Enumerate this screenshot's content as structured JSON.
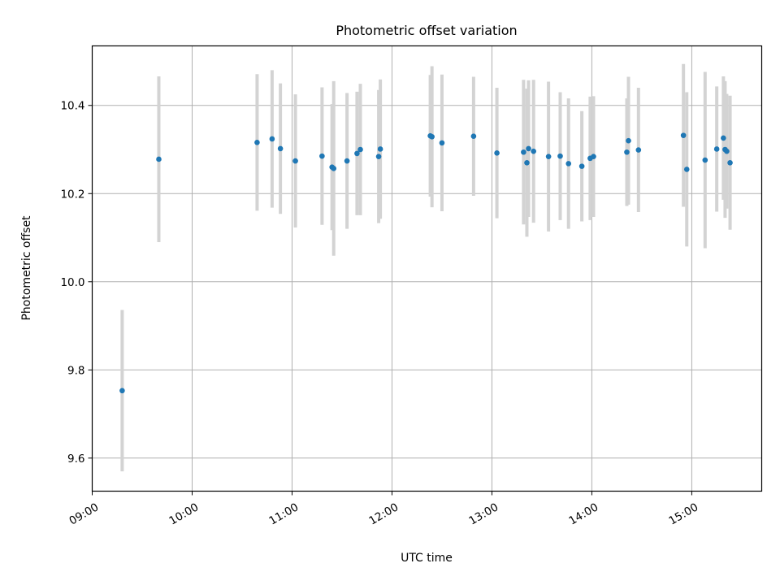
{
  "chart_data": {
    "type": "scatter",
    "title": "Photometric offset variation",
    "xlabel": "UTC time",
    "ylabel": "Photometric offset",
    "xlim": [
      "09:00",
      "15:42"
    ],
    "ylim": [
      9.525,
      10.535
    ],
    "x_ticks": [
      "09:00",
      "10:00",
      "11:00",
      "12:00",
      "13:00",
      "14:00",
      "15:00"
    ],
    "y_ticks": [
      "9.6",
      "9.8",
      "10.0",
      "10.2",
      "10.4"
    ],
    "grid": true,
    "marker_color": "#1f77b4",
    "errorbar_color": "#d3d3d3",
    "points": [
      {
        "x": "09:18",
        "y": 9.753,
        "err": 0.183
      },
      {
        "x": "09:40",
        "y": 10.278,
        "err": 0.188
      },
      {
        "x": "10:39",
        "y": 10.316,
        "err": 0.155
      },
      {
        "x": "10:48",
        "y": 10.324,
        "err": 0.156
      },
      {
        "x": "10:53",
        "y": 10.302,
        "err": 0.148
      },
      {
        "x": "11:02",
        "y": 10.274,
        "err": 0.151
      },
      {
        "x": "11:18",
        "y": 10.285,
        "err": 0.156
      },
      {
        "x": "11:24",
        "y": 10.26,
        "err": 0.143
      },
      {
        "x": "11:25",
        "y": 10.257,
        "err": 0.198
      },
      {
        "x": "11:33",
        "y": 10.274,
        "err": 0.154
      },
      {
        "x": "11:39",
        "y": 10.291,
        "err": 0.14
      },
      {
        "x": "11:41",
        "y": 10.3,
        "err": 0.149
      },
      {
        "x": "11:52",
        "y": 10.284,
        "err": 0.151
      },
      {
        "x": "11:53",
        "y": 10.301,
        "err": 0.158
      },
      {
        "x": "12:23",
        "y": 10.331,
        "err": 0.138
      },
      {
        "x": "12:24",
        "y": 10.329,
        "err": 0.16
      },
      {
        "x": "12:30",
        "y": 10.315,
        "err": 0.155
      },
      {
        "x": "12:49",
        "y": 10.33,
        "err": 0.135
      },
      {
        "x": "13:03",
        "y": 10.292,
        "err": 0.148
      },
      {
        "x": "13:19",
        "y": 10.294,
        "err": 0.164
      },
      {
        "x": "13:21",
        "y": 10.27,
        "err": 0.168
      },
      {
        "x": "13:22",
        "y": 10.302,
        "err": 0.155
      },
      {
        "x": "13:25",
        "y": 10.296,
        "err": 0.162
      },
      {
        "x": "13:34",
        "y": 10.284,
        "err": 0.17
      },
      {
        "x": "13:41",
        "y": 10.285,
        "err": 0.145
      },
      {
        "x": "13:46",
        "y": 10.268,
        "err": 0.148
      },
      {
        "x": "13:54",
        "y": 10.262,
        "err": 0.125
      },
      {
        "x": "13:59",
        "y": 10.28,
        "err": 0.14
      },
      {
        "x": "14:01",
        "y": 10.284,
        "err": 0.137
      },
      {
        "x": "14:21",
        "y": 10.294,
        "err": 0.122
      },
      {
        "x": "14:22",
        "y": 10.32,
        "err": 0.145
      },
      {
        "x": "14:28",
        "y": 10.299,
        "err": 0.141
      },
      {
        "x": "14:55",
        "y": 10.332,
        "err": 0.162
      },
      {
        "x": "14:57",
        "y": 10.255,
        "err": 0.175
      },
      {
        "x": "15:08",
        "y": 10.276,
        "err": 0.2
      },
      {
        "x": "15:15",
        "y": 10.301,
        "err": 0.142
      },
      {
        "x": "15:19",
        "y": 10.326,
        "err": 0.14
      },
      {
        "x": "15:20",
        "y": 10.3,
        "err": 0.155
      },
      {
        "x": "15:21",
        "y": 10.296,
        "err": 0.13
      },
      {
        "x": "15:23",
        "y": 10.27,
        "err": 0.152
      }
    ]
  }
}
